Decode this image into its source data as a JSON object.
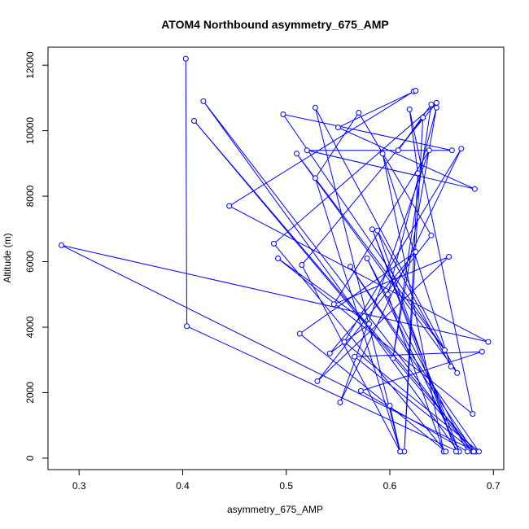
{
  "chart_data": {
    "type": "line",
    "title": "ATOM4 Northbound asymmetry_675_AMP",
    "xlabel": "asymmetry_675_AMP",
    "ylabel": "Altitude (m)",
    "xlim": [
      0.27,
      0.71
    ],
    "ylim": [
      -350,
      12550
    ],
    "xticks": [
      0.3,
      0.4,
      0.5,
      0.6,
      0.7
    ],
    "xtick_labels": [
      "0.3",
      "0.4",
      "0.5",
      "0.6",
      "0.7"
    ],
    "yticks": [
      0,
      2000,
      4000,
      6000,
      8000,
      10000,
      12000
    ],
    "ytick_labels": [
      "0",
      "2000",
      "4000",
      "6000",
      "8000",
      "10000",
      "12000"
    ],
    "grid": false,
    "legend": "none",
    "series_color": "#0000ff",
    "x": [
      0.403,
      0.404,
      0.666,
      0.42,
      0.68,
      0.411,
      0.683,
      0.283,
      0.695,
      0.445,
      0.623,
      0.625,
      0.55,
      0.682,
      0.52,
      0.66,
      0.497,
      0.653,
      0.51,
      0.665,
      0.528,
      0.61,
      0.528,
      0.57,
      0.64,
      0.53,
      0.657,
      0.546,
      0.638,
      0.552,
      0.669,
      0.556,
      0.686,
      0.562,
      0.681,
      0.566,
      0.689,
      0.572,
      0.675,
      0.578,
      0.667,
      0.583,
      0.664,
      0.588,
      0.659,
      0.593,
      0.652,
      0.598,
      0.645,
      0.603,
      0.64,
      0.608,
      0.632,
      0.614,
      0.627,
      0.619,
      0.68,
      0.492,
      0.58,
      0.542,
      0.625,
      0.513,
      0.654,
      0.488,
      0.645,
      0.515,
      0.61,
      0.6
    ],
    "y": [
      12200,
      4030,
      200,
      10900,
      200,
      10300,
      200,
      6500,
      3550,
      7700,
      11200,
      11220,
      10100,
      8220,
      9400,
      9400,
      10500,
      3300,
      9300,
      2600,
      10700,
      200,
      8550,
      10550,
      6800,
      2350,
      6150,
      4700,
      9400,
      1700,
      9450,
      3550,
      200,
      5850,
      200,
      3100,
      3250,
      2050,
      200,
      6100,
      200,
      6990,
      200,
      6950,
      2800,
      9300,
      200,
      5000,
      10700,
      3050,
      10800,
      9400,
      10400,
      200,
      8700,
      10650,
      1350,
      6100,
      4100,
      3200,
      6300,
      3800,
      200,
      6550,
      10850,
      5900,
      200,
      1600
    ]
  }
}
